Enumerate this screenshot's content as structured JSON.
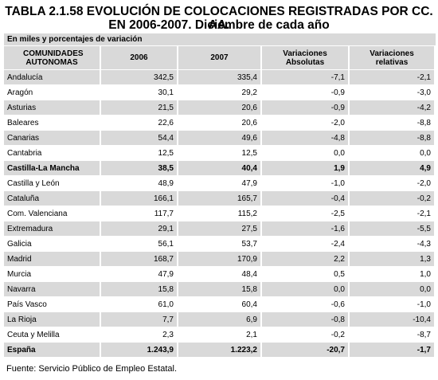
{
  "header": {
    "title_line1": "TABLA 2.1.58 EVOLUCIÓN DE COLOCACIONES REGISTRADAS POR CC. AA.",
    "title_line2": "EN 2006-2007. Diciembre de cada año"
  },
  "table": {
    "caption": "En miles y porcentajes de variación",
    "columns": [
      "COMUNIDADES AUTONOMAS",
      "2006",
      "2007",
      "Variaciones Absolutas",
      "Variaciones relativas"
    ],
    "rows": [
      [
        "Andalucía",
        "342,5",
        "335,4",
        "-7,1",
        "-2,1"
      ],
      [
        "Aragón",
        "30,1",
        "29,2",
        "-0,9",
        "-3,0"
      ],
      [
        "Asturias",
        "21,5",
        "20,6",
        "-0,9",
        "-4,2"
      ],
      [
        "Baleares",
        "22,6",
        "20,6",
        "-2,0",
        "-8,8"
      ],
      [
        "Canarias",
        "54,4",
        "49,6",
        "-4,8",
        "-8,8"
      ],
      [
        "Cantabria",
        "12,5",
        "12,5",
        "0,0",
        "0,0"
      ],
      [
        "Castilla-La Mancha",
        "38,5",
        "40,4",
        "1,9",
        "4,9"
      ],
      [
        "Castilla y León",
        "48,9",
        "47,9",
        "-1,0",
        "-2,0"
      ],
      [
        "Cataluña",
        "166,1",
        "165,7",
        "-0,4",
        "-0,2"
      ],
      [
        "Com. Valenciana",
        "117,7",
        "115,2",
        "-2,5",
        "-2,1"
      ],
      [
        "Extremadura",
        "29,1",
        "27,5",
        "-1,6",
        "-5,5"
      ],
      [
        "Galicia",
        "56,1",
        "53,7",
        "-2,4",
        "-4,3"
      ],
      [
        "Madrid",
        "168,7",
        "170,9",
        "2,2",
        "1,3"
      ],
      [
        "Murcia",
        "47,9",
        "48,4",
        "0,5",
        "1,0"
      ],
      [
        "Navarra",
        "15,8",
        "15,8",
        "0,0",
        "0,0"
      ],
      [
        "País Vasco",
        "61,0",
        "60,4",
        "-0,6",
        "-1,0"
      ],
      [
        "La Rioja",
        "7,7",
        "6,9",
        "-0,8",
        "-10,4"
      ],
      [
        "Ceuta y Melilla",
        "2,3",
        "2,1",
        "-0,2",
        "-8,7"
      ],
      [
        "España",
        "1.243,9",
        "1.223,2",
        "-20,7",
        "-1,7"
      ]
    ]
  },
  "footer": {
    "source": "Fuente: Servicio Público de Empleo Estatal."
  }
}
